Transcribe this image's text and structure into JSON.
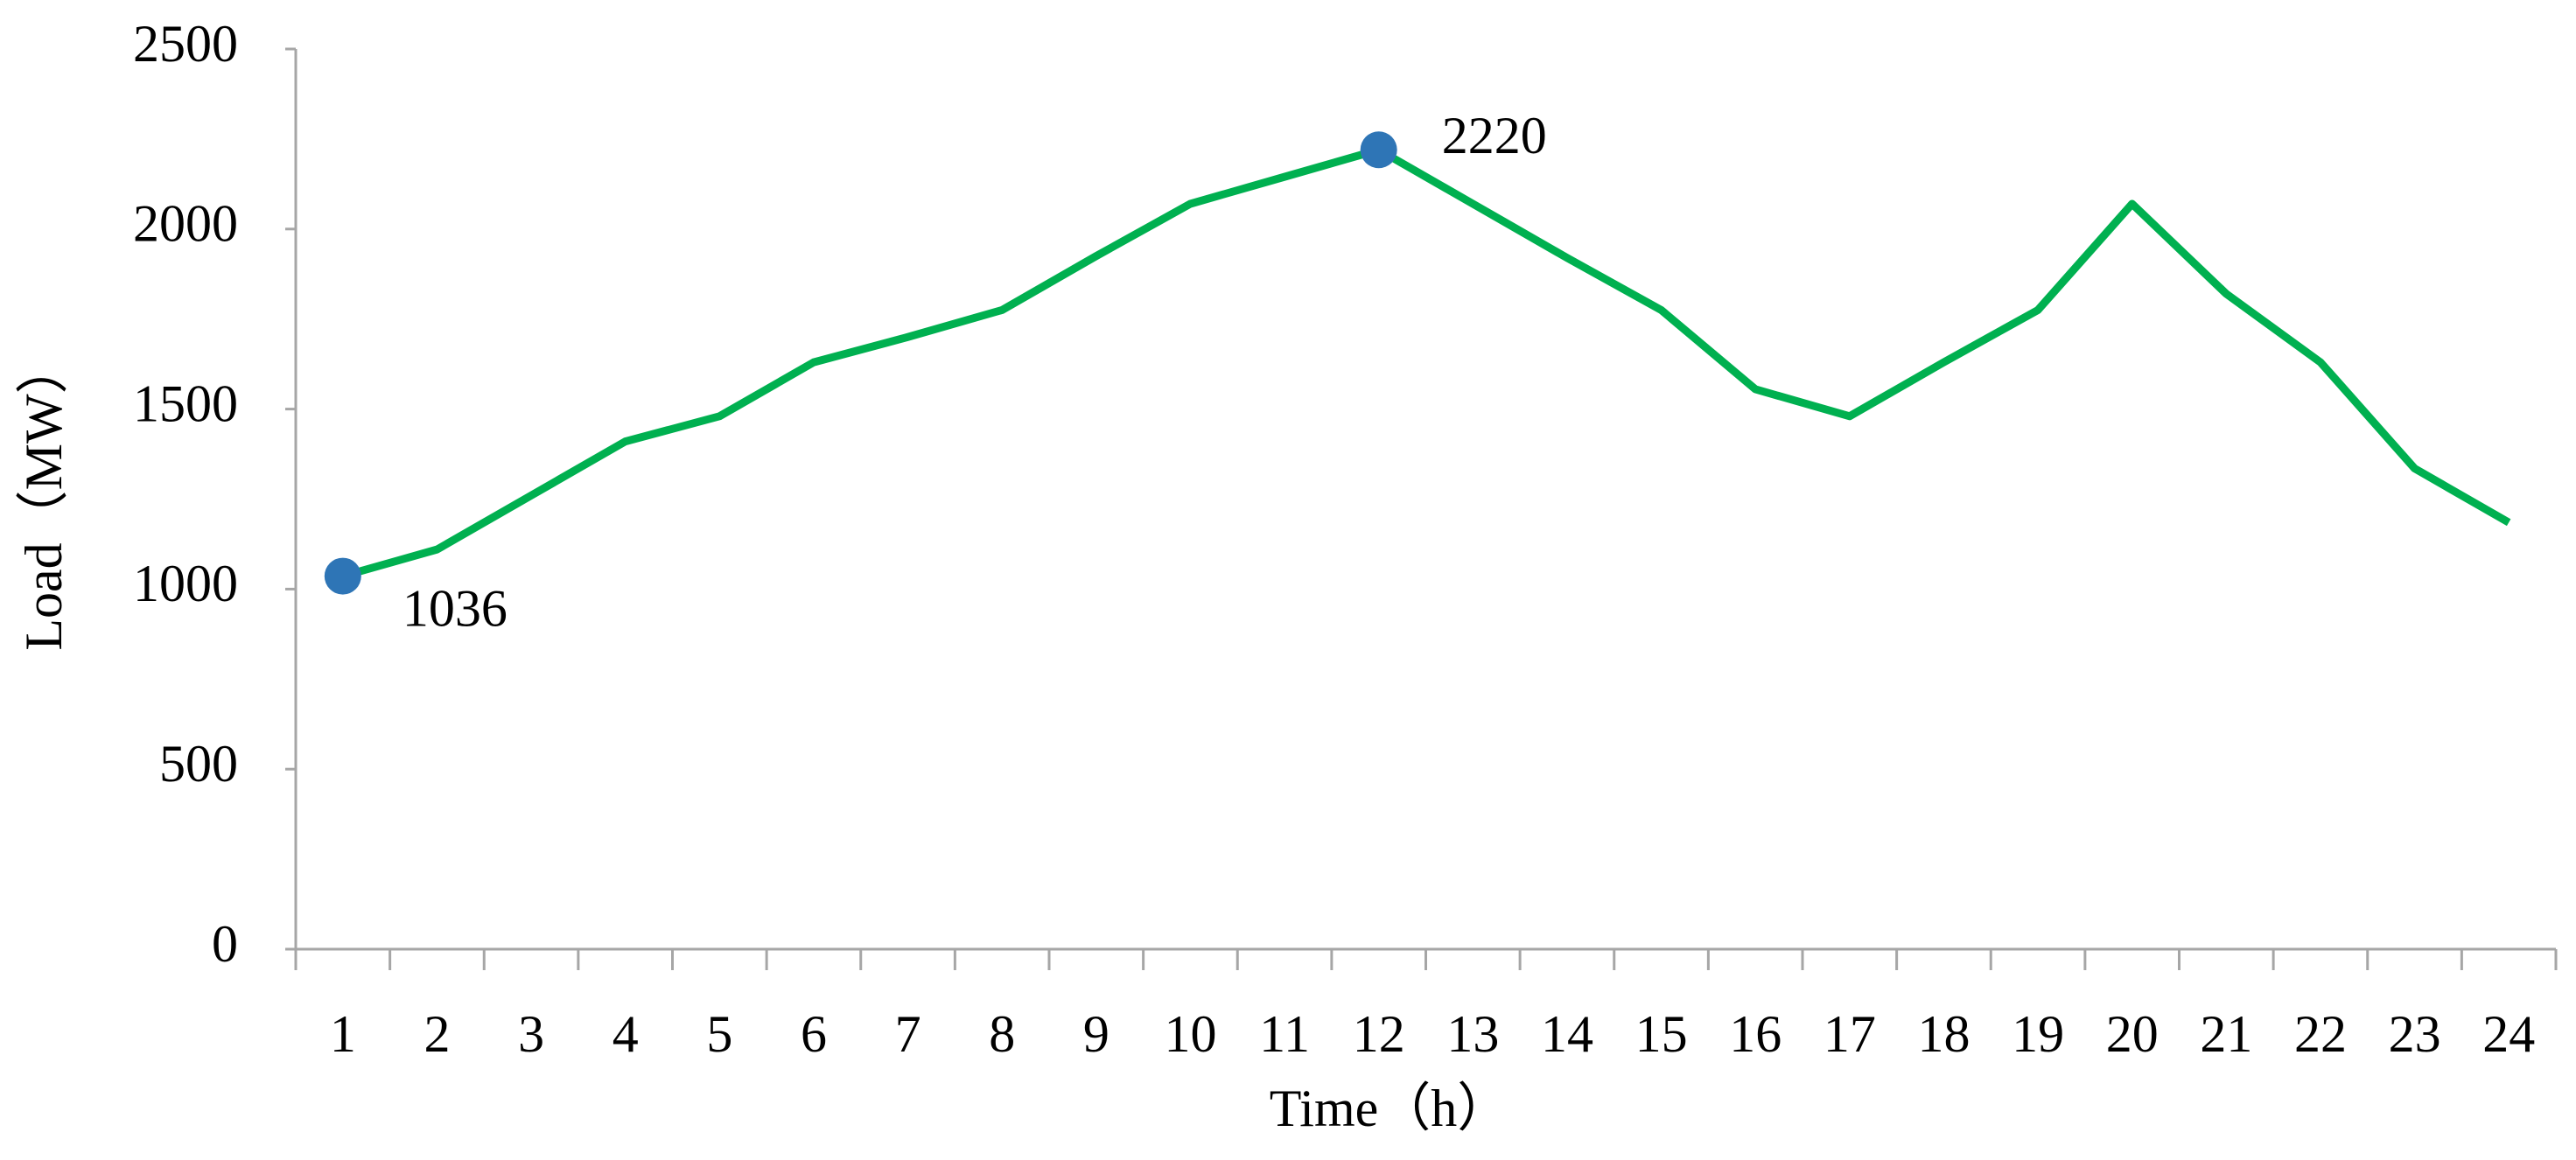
{
  "chart_data": {
    "type": "line",
    "xlabel": "Time（h）",
    "ylabel": "Load（MW）",
    "categories": [
      "1",
      "2",
      "3",
      "4",
      "5",
      "6",
      "7",
      "8",
      "9",
      "10",
      "11",
      "12",
      "13",
      "14",
      "15",
      "16",
      "17",
      "18",
      "19",
      "20",
      "21",
      "22",
      "23",
      "24"
    ],
    "values": [
      1036,
      1110,
      1260,
      1410,
      1480,
      1630,
      1700,
      1775,
      1925,
      2070,
      2145,
      2220,
      2070,
      1920,
      1775,
      1555,
      1480,
      1630,
      1775,
      2070,
      1820,
      1630,
      1335,
      1185
    ],
    "color": "#00b050",
    "annotated_points": [
      0,
      11
    ],
    "marker_color": "#2e75b6",
    "ylim": [
      0,
      2500
    ],
    "yticks": [
      0,
      500,
      1000,
      1500,
      2000,
      2500
    ],
    "grid": false
  }
}
